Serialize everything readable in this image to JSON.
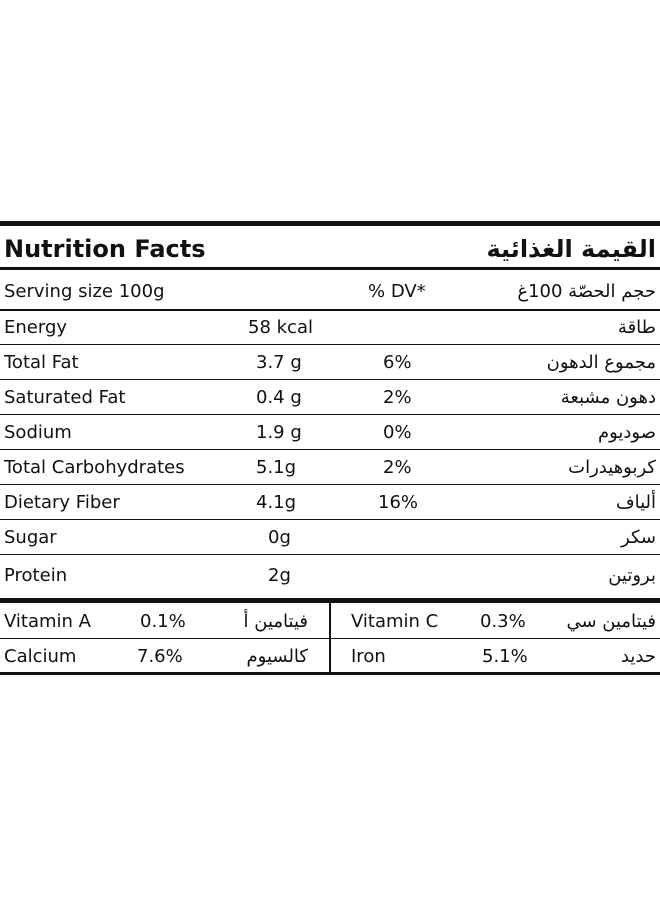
{
  "header": {
    "title_en": "Nutrition Facts",
    "title_ar": "القيمة الغذائية"
  },
  "serving": {
    "label_en": "Serving size 100g",
    "dv_label": "% DV*",
    "label_ar": "حجم الحصّة 100غ"
  },
  "nutrients": [
    {
      "en": "Energy",
      "amount": "58 kcal",
      "dv": "",
      "ar": "طاقة"
    },
    {
      "en": "Total Fat",
      "amount": "3.7 g",
      "dv": "6%",
      "ar": "مجموع الدهون"
    },
    {
      "en": "Saturated Fat",
      "amount": "0.4 g",
      "dv": "2%",
      "ar": "دهون مشبعة"
    },
    {
      "en": "Sodium",
      "amount": "1.9 g",
      "dv": "0%",
      "ar": "صوديوم"
    },
    {
      "en": "Total Carbohydrates",
      "amount": "5.1g",
      "dv": "2%",
      "ar": "كربوهيدرات"
    },
    {
      "en": "Dietary Fiber",
      "amount": "4.1g",
      "dv": "16%",
      "ar": "ألياف"
    },
    {
      "en": "Sugar",
      "amount": "0g",
      "dv": "",
      "ar": "سكر"
    },
    {
      "en": "Protein",
      "amount": "2g",
      "dv": "",
      "ar": "بروتين"
    }
  ],
  "vitamins": [
    {
      "en": "Vitamin A",
      "dv": "0.1%",
      "ar": "فيتامين أ"
    },
    {
      "en": "Vitamin C",
      "dv": "0.3%",
      "ar": "فيتامين سي"
    },
    {
      "en": "Calcium",
      "dv": "7.6%",
      "ar": "كالسيوم"
    },
    {
      "en": "Iron",
      "dv": "5.1%",
      "ar": "حديد"
    }
  ]
}
